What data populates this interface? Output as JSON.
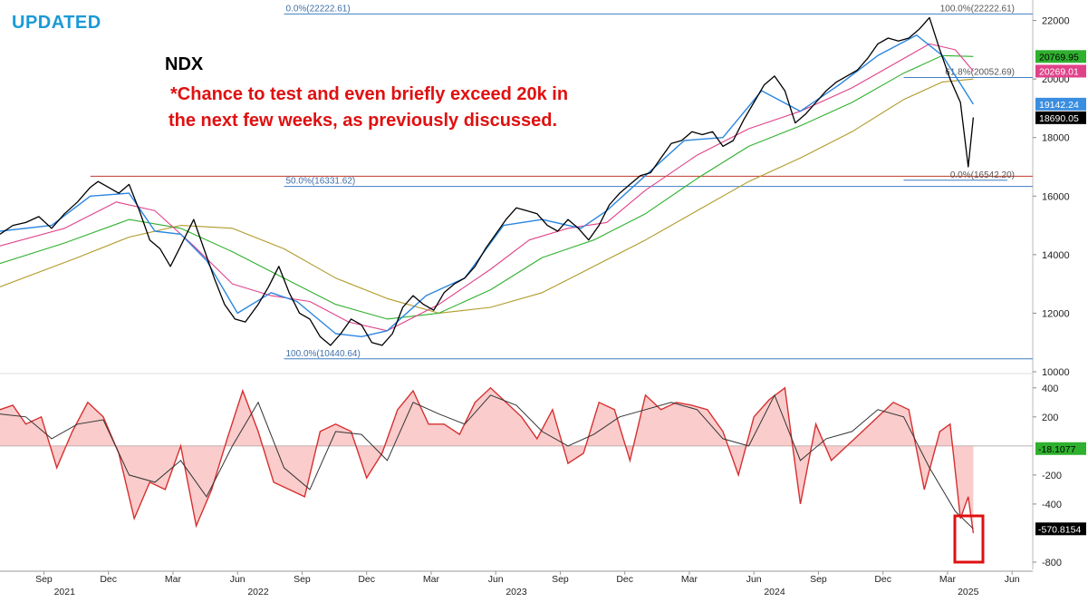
{
  "header": {
    "badge": "UPDATED",
    "ticker": "NDX",
    "comment_line1": "*Chance to test and even briefly exceed 20k in",
    "comment_line2": "the next few weeks, as previously discussed."
  },
  "colors": {
    "price": "#000000",
    "ma_fast": "#2a86e0",
    "ma_fast2": "#7fb8ee",
    "ma_pink": "#e0428a",
    "ma_green": "#2fb02f",
    "ma_olive": "#b09a2a",
    "fib_line": "#3f7fc2",
    "resistance_line": "#c0392b",
    "osc_fill": "#f5a3a3",
    "osc_fill_light": "#cfcfcf",
    "osc_line": "#d62f2f",
    "highlight_box": "#e01010"
  },
  "chart_data": [
    {
      "type": "line",
      "title": "NDX",
      "ylim": [
        10000,
        22700
      ],
      "y_ticks": [
        10000,
        12000,
        14000,
        16000,
        18000,
        20000,
        22000
      ],
      "grid": false,
      "x_axis": {
        "months": [
          {
            "label": "Sep",
            "t": 2021.67
          },
          {
            "label": "Dec",
            "t": 2021.92
          },
          {
            "label": "Mar",
            "t": 2022.17
          },
          {
            "label": "Jun",
            "t": 2022.42
          },
          {
            "label": "Sep",
            "t": 2022.67
          },
          {
            "label": "Dec",
            "t": 2022.92
          },
          {
            "label": "Mar",
            "t": 2023.17
          },
          {
            "label": "Jun",
            "t": 2023.42
          },
          {
            "label": "Sep",
            "t": 2023.67
          },
          {
            "label": "Dec",
            "t": 2023.92
          },
          {
            "label": "Mar",
            "t": 2024.17
          },
          {
            "label": "Jun",
            "t": 2024.42
          },
          {
            "label": "Sep",
            "t": 2024.67
          },
          {
            "label": "Dec",
            "t": 2024.92
          },
          {
            "label": "Mar",
            "t": 2025.17
          },
          {
            "label": "Jun",
            "t": 2025.42
          }
        ],
        "years": [
          {
            "label": "2021",
            "t": 2021.75
          },
          {
            "label": "2022",
            "t": 2022.5
          },
          {
            "label": "2023",
            "t": 2023.5
          },
          {
            "label": "2024",
            "t": 2024.5
          },
          {
            "label": "2025",
            "t": 2025.25
          }
        ],
        "range": [
          2021.5,
          2025.5
        ]
      },
      "series": [
        {
          "role": "price",
          "x": [
            2021.5,
            2021.55,
            2021.6,
            2021.65,
            2021.7,
            2021.75,
            2021.8,
            2021.85,
            2021.88,
            2021.92,
            2021.96,
            2022.0,
            2022.04,
            2022.08,
            2022.12,
            2022.16,
            2022.2,
            2022.25,
            2022.29,
            2022.33,
            2022.37,
            2022.41,
            2022.45,
            2022.5,
            2022.54,
            2022.58,
            2022.62,
            2022.66,
            2022.7,
            2022.74,
            2022.78,
            2022.82,
            2022.86,
            2022.9,
            2022.94,
            2022.98,
            2023.02,
            2023.06,
            2023.1,
            2023.14,
            2023.18,
            2023.22,
            2023.26,
            2023.3,
            2023.34,
            2023.38,
            2023.42,
            2023.46,
            2023.5,
            2023.54,
            2023.58,
            2023.62,
            2023.66,
            2023.7,
            2023.74,
            2023.78,
            2023.82,
            2023.86,
            2023.9,
            2023.94,
            2023.98,
            2024.02,
            2024.06,
            2024.1,
            2024.14,
            2024.18,
            2024.22,
            2024.26,
            2024.3,
            2024.34,
            2024.38,
            2024.42,
            2024.46,
            2024.5,
            2024.54,
            2024.58,
            2024.62,
            2024.66,
            2024.7,
            2024.74,
            2024.78,
            2024.82,
            2024.86,
            2024.9,
            2024.94,
            2024.98,
            2025.02,
            2025.06,
            2025.1,
            2025.14,
            2025.18,
            2025.22,
            2025.25,
            2025.27
          ],
          "values": [
            14700,
            15000,
            15100,
            15300,
            14900,
            15400,
            15800,
            16300,
            16500,
            16300,
            16100,
            16400,
            15500,
            14500,
            14200,
            13600,
            14300,
            15200,
            14200,
            13200,
            12300,
            11800,
            11700,
            12300,
            12900,
            13600,
            12700,
            12000,
            11800,
            11200,
            10900,
            11300,
            11800,
            11600,
            11000,
            10900,
            11300,
            12200,
            12600,
            12300,
            12100,
            12700,
            13000,
            13200,
            13600,
            14200,
            14700,
            15200,
            15600,
            15500,
            15400,
            15000,
            14800,
            15200,
            14900,
            14500,
            15000,
            15700,
            16100,
            16400,
            16700,
            16800,
            17300,
            17800,
            17900,
            18200,
            18100,
            18200,
            17700,
            17900,
            18600,
            19200,
            19800,
            20100,
            19600,
            18500,
            18800,
            19200,
            19600,
            19900,
            20100,
            20300,
            20700,
            21200,
            21400,
            21300,
            21400,
            21700,
            22100,
            21000,
            20000,
            19200,
            17000,
            18690
          ]
        },
        {
          "role": "ma_fast",
          "x": [
            2021.5,
            2021.7,
            2021.85,
            2022.0,
            2022.1,
            2022.2,
            2022.3,
            2022.42,
            2022.55,
            2022.65,
            2022.8,
            2022.9,
            2023.0,
            2023.15,
            2023.3,
            2023.45,
            2023.6,
            2023.75,
            2023.85,
            2024.0,
            2024.15,
            2024.3,
            2024.45,
            2024.6,
            2024.75,
            2024.9,
            2025.05,
            2025.15,
            2025.27
          ],
          "values": [
            14800,
            15000,
            16000,
            16100,
            14800,
            14700,
            13800,
            12000,
            12700,
            12400,
            11300,
            11200,
            11400,
            12600,
            13200,
            15000,
            15200,
            14900,
            15500,
            16700,
            17900,
            18000,
            19600,
            18900,
            19800,
            20800,
            21500,
            20800,
            19142
          ]
        },
        {
          "role": "ma_pink",
          "x": [
            2021.5,
            2021.75,
            2021.95,
            2022.1,
            2022.25,
            2022.4,
            2022.55,
            2022.7,
            2022.85,
            2023.0,
            2023.2,
            2023.4,
            2023.55,
            2023.7,
            2023.85,
            2024.0,
            2024.2,
            2024.4,
            2024.6,
            2024.8,
            2025.0,
            2025.1,
            2025.2,
            2025.27
          ],
          "values": [
            14300,
            14900,
            15800,
            15500,
            14300,
            13000,
            12600,
            12400,
            11700,
            11400,
            12300,
            13500,
            14500,
            14900,
            15100,
            16200,
            17400,
            18300,
            18900,
            19700,
            20700,
            21200,
            21000,
            20269
          ]
        },
        {
          "role": "ma_green",
          "x": [
            2021.5,
            2021.75,
            2022.0,
            2022.2,
            2022.4,
            2022.6,
            2022.8,
            2023.0,
            2023.2,
            2023.4,
            2023.6,
            2023.8,
            2024.0,
            2024.2,
            2024.4,
            2024.6,
            2024.8,
            2025.0,
            2025.15,
            2025.27
          ],
          "values": [
            13700,
            14400,
            15200,
            14900,
            14100,
            13200,
            12300,
            11800,
            12000,
            12800,
            13900,
            14500,
            15400,
            16600,
            17700,
            18400,
            19200,
            20200,
            20800,
            20770
          ]
        },
        {
          "role": "ma_olive",
          "x": [
            2021.5,
            2021.8,
            2022.0,
            2022.2,
            2022.4,
            2022.6,
            2022.8,
            2023.0,
            2023.2,
            2023.4,
            2023.6,
            2023.8,
            2024.0,
            2024.2,
            2024.4,
            2024.6,
            2024.8,
            2025.0,
            2025.15,
            2025.27
          ],
          "values": [
            12900,
            13900,
            14600,
            15000,
            14900,
            14200,
            13200,
            12500,
            12000,
            12200,
            12700,
            13600,
            14500,
            15500,
            16500,
            17300,
            18200,
            19300,
            19900,
            20000
          ]
        }
      ],
      "horizontal_lines": [
        {
          "role": "fib",
          "value": 22222.61,
          "label": "0.0%(22222.61)",
          "label_right": "100.0%(22222.61)",
          "x_start": 2022.6
        },
        {
          "role": "fib",
          "value": 20052.69,
          "label_right": "61.8%(20052.69)",
          "x_start": 2025.0
        },
        {
          "role": "resistance",
          "value": 16680,
          "x_start": 2021.85
        },
        {
          "role": "fib",
          "value": 16331.62,
          "label": "50.0%(16331.62)",
          "x_start": 2022.6
        },
        {
          "role": "fib_short",
          "value": 16542.2,
          "label_right": "0.0%(16542.20)",
          "x_start": 2025.0
        },
        {
          "role": "fib",
          "value": 10440.64,
          "label": "100.0%(10440.64)",
          "x_start": 2022.6
        }
      ],
      "value_tags": [
        {
          "value": 20769.95,
          "text": "20769.95",
          "bg": "#2fb02f",
          "fg": "#000000"
        },
        {
          "value": 20269.01,
          "text": "20269.01",
          "bg": "#e0428a",
          "fg": "#ffffff"
        },
        {
          "value": 19142.24,
          "text": "19142.24",
          "bg": "#3a8ee0",
          "fg": "#ffffff"
        },
        {
          "value": 18690.05,
          "text": "18690.05",
          "bg": "#000000",
          "fg": "#ffffff"
        }
      ]
    },
    {
      "type": "area",
      "title": "",
      "ylim": [
        -850,
        480
      ],
      "y_ticks": [
        400,
        200,
        -200,
        -400,
        -800
      ],
      "zero_line": 0,
      "series": [
        {
          "role": "oscillator",
          "x": [
            2021.5,
            2021.55,
            2021.6,
            2021.66,
            2021.72,
            2021.78,
            2021.84,
            2021.9,
            2021.96,
            2022.02,
            2022.08,
            2022.14,
            2022.2,
            2022.26,
            2022.32,
            2022.38,
            2022.44,
            2022.5,
            2022.56,
            2022.62,
            2022.68,
            2022.74,
            2022.8,
            2022.86,
            2022.92,
            2022.98,
            2023.04,
            2023.1,
            2023.16,
            2023.22,
            2023.28,
            2023.34,
            2023.4,
            2023.46,
            2023.52,
            2023.58,
            2023.64,
            2023.7,
            2023.76,
            2023.82,
            2023.88,
            2023.94,
            2024.0,
            2024.06,
            2024.12,
            2024.18,
            2024.24,
            2024.3,
            2024.36,
            2024.42,
            2024.48,
            2024.54,
            2024.6,
            2024.66,
            2024.72,
            2024.78,
            2024.84,
            2024.9,
            2024.96,
            2025.02,
            2025.08,
            2025.14,
            2025.18,
            2025.22,
            2025.25,
            2025.27
          ],
          "values": [
            250,
            280,
            150,
            200,
            -150,
            100,
            300,
            200,
            -50,
            -500,
            -250,
            -300,
            0,
            -550,
            -300,
            50,
            380,
            100,
            -250,
            -300,
            -350,
            100,
            150,
            100,
            -220,
            -50,
            250,
            380,
            150,
            150,
            80,
            300,
            400,
            300,
            200,
            50,
            250,
            -120,
            -50,
            300,
            250,
            -100,
            350,
            250,
            300,
            280,
            250,
            100,
            -200,
            200,
            320,
            400,
            -400,
            150,
            -100,
            0,
            100,
            200,
            300,
            250,
            -300,
            100,
            150,
            -500,
            -350,
            -600
          ]
        },
        {
          "role": "signal",
          "x": [
            2021.5,
            2021.6,
            2021.7,
            2021.8,
            2021.9,
            2022.0,
            2022.1,
            2022.2,
            2022.3,
            2022.4,
            2022.5,
            2022.6,
            2022.7,
            2022.8,
            2022.9,
            2023.0,
            2023.1,
            2023.2,
            2023.3,
            2023.4,
            2023.5,
            2023.6,
            2023.7,
            2023.8,
            2023.9,
            2024.0,
            2024.1,
            2024.2,
            2024.3,
            2024.4,
            2024.5,
            2024.6,
            2024.7,
            2024.8,
            2024.9,
            2025.0,
            2025.1,
            2025.2,
            2025.27
          ],
          "values": [
            220,
            200,
            50,
            150,
            180,
            -200,
            -250,
            -100,
            -350,
            0,
            300,
            -150,
            -300,
            100,
            80,
            -100,
            300,
            220,
            150,
            350,
            280,
            100,
            0,
            80,
            200,
            250,
            300,
            250,
            50,
            0,
            350,
            -100,
            50,
            100,
            250,
            200,
            -150,
            -450,
            -570.8154
          ]
        }
      ],
      "value_tags": [
        {
          "value": -18.1077,
          "text": "-18.1077",
          "bg": "#2fb02f",
          "fg": "#000000"
        },
        {
          "value": -570.8154,
          "text": "-570.8154",
          "bg": "#000000",
          "fg": "#ffffff"
        }
      ]
    }
  ]
}
